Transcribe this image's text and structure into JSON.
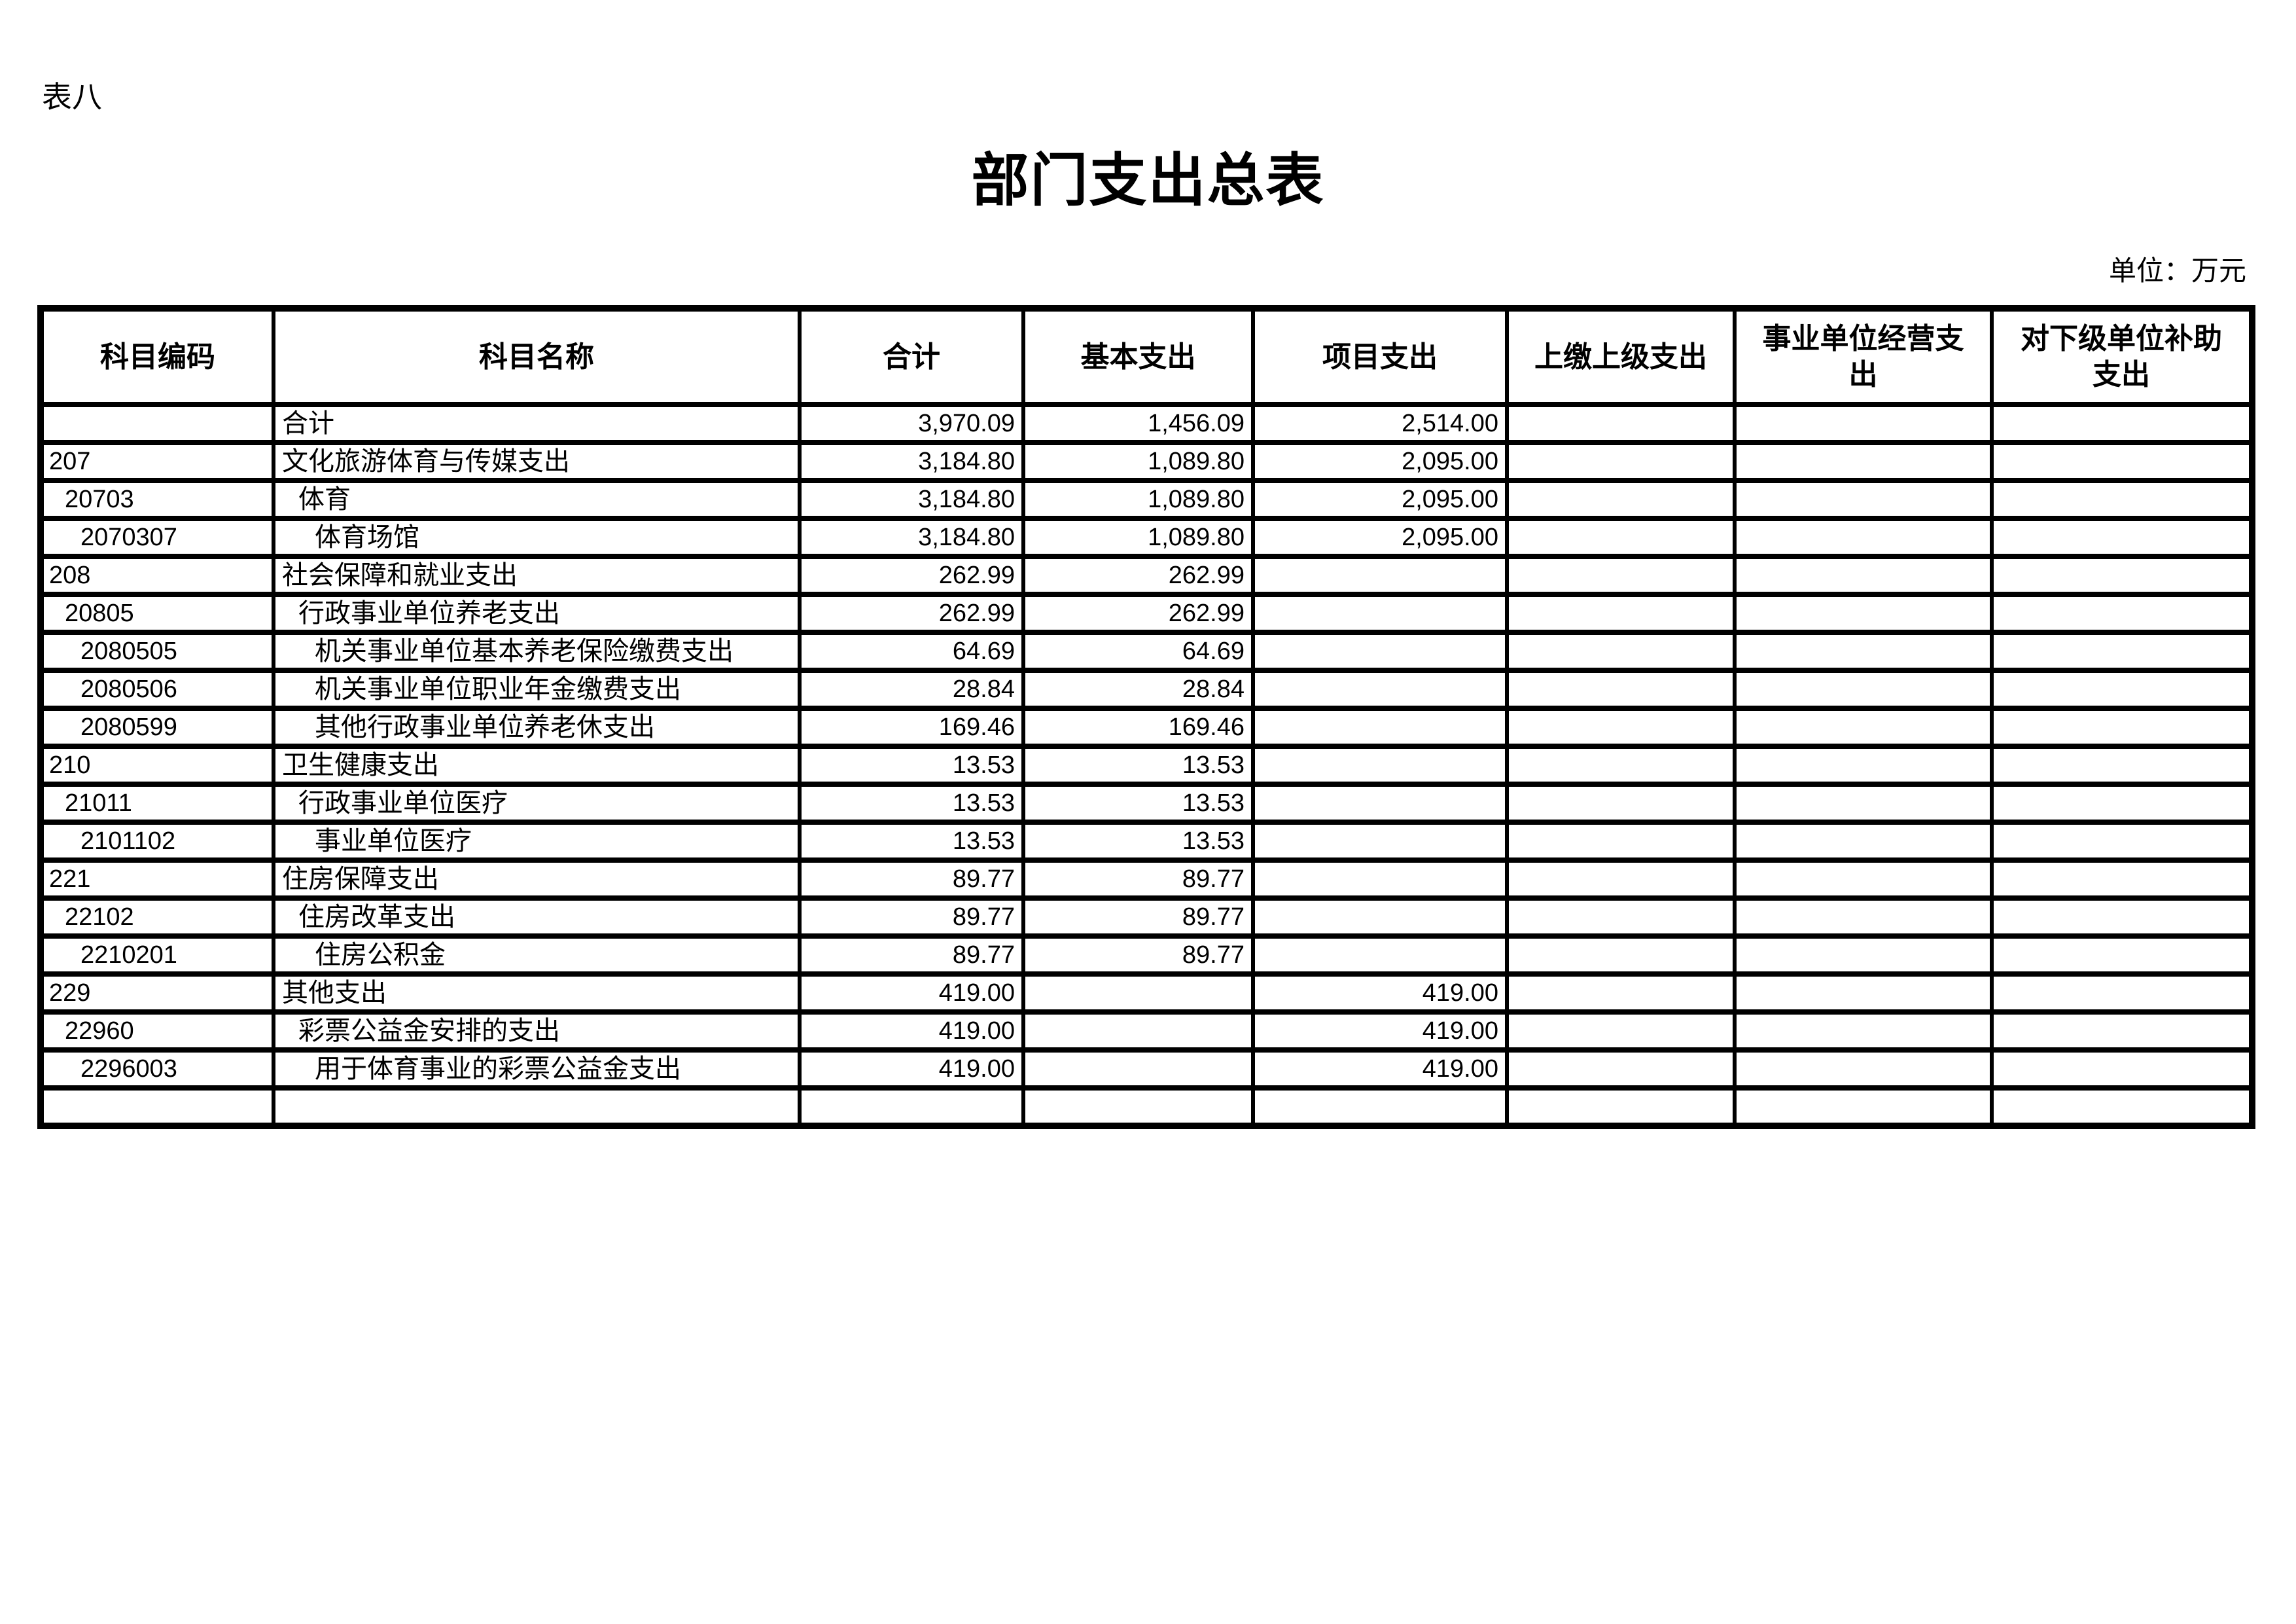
{
  "page": {
    "table_label": "表八",
    "title": "部门支出总表",
    "unit_label": "单位：万元"
  },
  "table": {
    "columns": [
      "科目编码",
      "科目名称",
      "合计",
      "基本支出",
      "项目支出",
      "上缴上级支出",
      "事业单位经营支出",
      "对下级单位补助支出"
    ],
    "rows": [
      {
        "code": "",
        "indent": 0,
        "name": "合计",
        "values": [
          "3,970.09",
          "1,456.09",
          "2,514.00",
          "",
          "",
          ""
        ]
      },
      {
        "code": "207",
        "indent": 0,
        "name": "文化旅游体育与传媒支出",
        "values": [
          "3,184.80",
          "1,089.80",
          "2,095.00",
          "",
          "",
          ""
        ]
      },
      {
        "code": "20703",
        "indent": 1,
        "name": "体育",
        "values": [
          "3,184.80",
          "1,089.80",
          "2,095.00",
          "",
          "",
          ""
        ]
      },
      {
        "code": "2070307",
        "indent": 2,
        "name": "体育场馆",
        "values": [
          "3,184.80",
          "1,089.80",
          "2,095.00",
          "",
          "",
          ""
        ]
      },
      {
        "code": "208",
        "indent": 0,
        "name": "社会保障和就业支出",
        "values": [
          "262.99",
          "262.99",
          "",
          "",
          "",
          ""
        ]
      },
      {
        "code": "20805",
        "indent": 1,
        "name": "行政事业单位养老支出",
        "values": [
          "262.99",
          "262.99",
          "",
          "",
          "",
          ""
        ]
      },
      {
        "code": "2080505",
        "indent": 2,
        "name": "机关事业单位基本养老保险缴费支出",
        "values": [
          "64.69",
          "64.69",
          "",
          "",
          "",
          ""
        ]
      },
      {
        "code": "2080506",
        "indent": 2,
        "name": "机关事业单位职业年金缴费支出",
        "values": [
          "28.84",
          "28.84",
          "",
          "",
          "",
          ""
        ]
      },
      {
        "code": "2080599",
        "indent": 2,
        "name": "其他行政事业单位养老休支出",
        "values": [
          "169.46",
          "169.46",
          "",
          "",
          "",
          ""
        ]
      },
      {
        "code": "210",
        "indent": 0,
        "name": "卫生健康支出",
        "values": [
          "13.53",
          "13.53",
          "",
          "",
          "",
          ""
        ]
      },
      {
        "code": "21011",
        "indent": 1,
        "name": "行政事业单位医疗",
        "values": [
          "13.53",
          "13.53",
          "",
          "",
          "",
          ""
        ]
      },
      {
        "code": "2101102",
        "indent": 2,
        "name": "事业单位医疗",
        "values": [
          "13.53",
          "13.53",
          "",
          "",
          "",
          ""
        ]
      },
      {
        "code": "221",
        "indent": 0,
        "name": "住房保障支出",
        "values": [
          "89.77",
          "89.77",
          "",
          "",
          "",
          ""
        ]
      },
      {
        "code": "22102",
        "indent": 1,
        "name": "住房改革支出",
        "values": [
          "89.77",
          "89.77",
          "",
          "",
          "",
          ""
        ]
      },
      {
        "code": "2210201",
        "indent": 2,
        "name": "住房公积金",
        "values": [
          "89.77",
          "89.77",
          "",
          "",
          "",
          ""
        ]
      },
      {
        "code": "229",
        "indent": 0,
        "name": "其他支出",
        "values": [
          "419.00",
          "",
          "419.00",
          "",
          "",
          ""
        ]
      },
      {
        "code": "22960",
        "indent": 1,
        "name": "彩票公益金安排的支出",
        "values": [
          "419.00",
          "",
          "419.00",
          "",
          "",
          ""
        ]
      },
      {
        "code": "2296003",
        "indent": 2,
        "name": "用于体育事业的彩票公益金支出",
        "values": [
          "419.00",
          "",
          "419.00",
          "",
          "",
          ""
        ]
      },
      {
        "code": "",
        "indent": 0,
        "name": "",
        "values": [
          "",
          "",
          "",
          "",
          "",
          ""
        ]
      }
    ]
  }
}
